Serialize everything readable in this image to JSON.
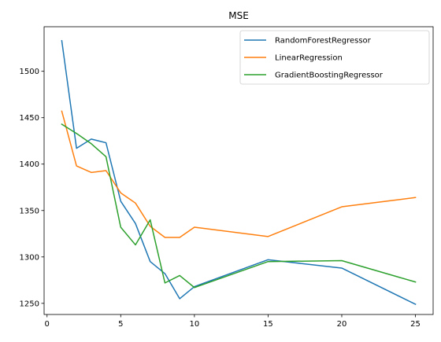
{
  "chart_data": {
    "type": "line",
    "title": "MSE",
    "xlabel": "",
    "ylabel": "",
    "xlim": [
      -0.2,
      26.2
    ],
    "ylim": [
      1238,
      1548
    ],
    "xticks": [
      0,
      5,
      10,
      15,
      20,
      25
    ],
    "yticks": [
      1250,
      1300,
      1350,
      1400,
      1450,
      1500
    ],
    "grid": false,
    "legend_position": "top-right",
    "x": [
      1,
      2,
      3,
      4,
      5,
      6,
      7,
      8,
      9,
      10,
      15,
      20,
      25
    ],
    "series": [
      {
        "name": "RandomForestRegressor",
        "color": "#1f77b4",
        "values": [
          1533,
          1417,
          1427,
          1423,
          1360,
          1336,
          1295,
          1282,
          1255,
          1268,
          1297,
          1288,
          1249
        ]
      },
      {
        "name": "LinearRegression",
        "color": "#ff7f0e",
        "values": [
          1457,
          1398,
          1391,
          1393,
          1369,
          1358,
          1333,
          1321,
          1321,
          1332,
          1322,
          1354,
          1364
        ]
      },
      {
        "name": "GradientBoostingRegressor",
        "color": "#2ca02c",
        "values": [
          1443,
          1433,
          1422,
          1408,
          1332,
          1313,
          1340,
          1272,
          1280,
          1267,
          1295,
          1296,
          1273
        ]
      }
    ]
  }
}
